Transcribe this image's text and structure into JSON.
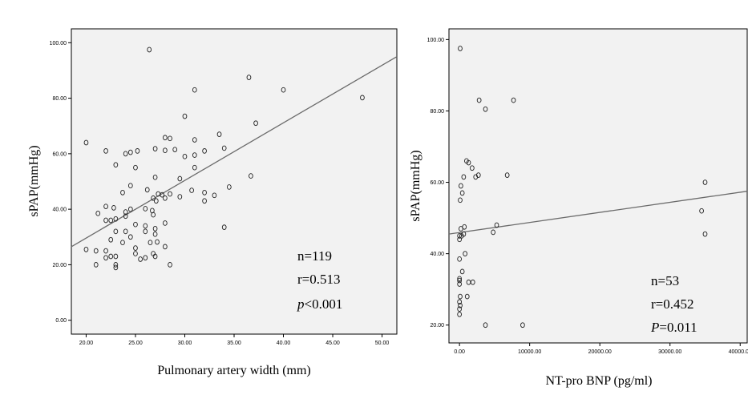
{
  "chart_data": [
    {
      "type": "scatter",
      "title": "",
      "xlabel": "Pulmonary artery width (mm)",
      "ylabel": "sPAP(mmHg)",
      "xlim": [
        18.5,
        51.5
      ],
      "ylim": [
        -5,
        105
      ],
      "xticks": [
        "20.00",
        "25.00",
        "30.00",
        "35.00",
        "40.00",
        "45.00",
        "50.00"
      ],
      "xtick_values": [
        20,
        25,
        30,
        35,
        40,
        45,
        50
      ],
      "yticks": [
        "0.00",
        "20.00",
        "40.00",
        "60.00",
        "80.00",
        "100.00"
      ],
      "ytick_values": [
        0,
        20,
        40,
        60,
        80,
        100
      ],
      "fit_line": {
        "x": [
          18.5,
          51.5
        ],
        "y": [
          26.5,
          95
        ]
      },
      "annotations": {
        "n": "n=119",
        "r": "r=0.513",
        "p_symbol": "p",
        "p_rest": "<0.001"
      },
      "points": [
        [
          26.4,
          97.5
        ],
        [
          36.5,
          87.5
        ],
        [
          40.0,
          83.0
        ],
        [
          31.0,
          83.0
        ],
        [
          48.0,
          80.2
        ],
        [
          30.0,
          73.5
        ],
        [
          37.2,
          71.0
        ],
        [
          33.5,
          67.0
        ],
        [
          28.5,
          65.5
        ],
        [
          28.0,
          65.8
        ],
        [
          31.0,
          65.0
        ],
        [
          20.0,
          64.0
        ],
        [
          27.0,
          61.8
        ],
        [
          28.0,
          61.2
        ],
        [
          29.0,
          61.5
        ],
        [
          22.0,
          61.0
        ],
        [
          24.5,
          60.5
        ],
        [
          24.0,
          60.0
        ],
        [
          25.2,
          61.0
        ],
        [
          32.0,
          61.0
        ],
        [
          34.0,
          62.0
        ],
        [
          30.0,
          59.0
        ],
        [
          31.0,
          59.5
        ],
        [
          23.0,
          56.0
        ],
        [
          25.0,
          55.0
        ],
        [
          31.0,
          55.0
        ],
        [
          36.7,
          52.0
        ],
        [
          27.0,
          51.5
        ],
        [
          29.5,
          51.0
        ],
        [
          24.5,
          48.5
        ],
        [
          34.5,
          48.0
        ],
        [
          23.7,
          46.0
        ],
        [
          26.2,
          47.0
        ],
        [
          30.7,
          46.8
        ],
        [
          33.0,
          45.0
        ],
        [
          27.3,
          45.5
        ],
        [
          28.5,
          45.5
        ],
        [
          32.0,
          46.0
        ],
        [
          26.8,
          44.0
        ],
        [
          29.5,
          44.5
        ],
        [
          28.0,
          44.0
        ],
        [
          32.0,
          43.0
        ],
        [
          27.1,
          43.0
        ],
        [
          27.7,
          45.2
        ],
        [
          22.0,
          41.0
        ],
        [
          22.8,
          40.5
        ],
        [
          24.5,
          40.0
        ],
        [
          26.0,
          40.2
        ],
        [
          26.7,
          39.5
        ],
        [
          24.0,
          39.0
        ],
        [
          26.8,
          38.0
        ],
        [
          21.2,
          38.5
        ],
        [
          24.0,
          37.5
        ],
        [
          22.0,
          36.0
        ],
        [
          22.5,
          36.0
        ],
        [
          23.0,
          36.5
        ],
        [
          25.0,
          34.5
        ],
        [
          28.0,
          35.0
        ],
        [
          26.0,
          34.0
        ],
        [
          34.0,
          33.5
        ],
        [
          23.0,
          32.0
        ],
        [
          24.0,
          32.0
        ],
        [
          26.0,
          32.0
        ],
        [
          27.0,
          33.0
        ],
        [
          24.5,
          30.0
        ],
        [
          27.0,
          31.0
        ],
        [
          22.5,
          29.0
        ],
        [
          23.7,
          28.0
        ],
        [
          26.5,
          28.0
        ],
        [
          27.2,
          28.2
        ],
        [
          25.0,
          26.0
        ],
        [
          20.0,
          25.5
        ],
        [
          21.0,
          25.0
        ],
        [
          22.0,
          25.0
        ],
        [
          25.0,
          24.0
        ],
        [
          26.8,
          24.0
        ],
        [
          28.0,
          26.5
        ],
        [
          22.0,
          22.5
        ],
        [
          22.5,
          23.0
        ],
        [
          23.0,
          23.0
        ],
        [
          25.5,
          22.0
        ],
        [
          26.0,
          22.5
        ],
        [
          27.0,
          23.0
        ],
        [
          21.0,
          20.0
        ],
        [
          23.0,
          20.0
        ],
        [
          23.0,
          19.0
        ],
        [
          28.5,
          20.0
        ]
      ]
    },
    {
      "type": "scatter",
      "title": "",
      "xlabel": "NT-pro BNP (pg/ml)",
      "ylabel": "sPAP(mmHg)",
      "xlim": [
        -1500,
        41000
      ],
      "ylim": [
        15,
        103
      ],
      "xticks": [
        "0.00",
        "10000.00",
        "20000.00",
        "30000.00",
        "40000.00"
      ],
      "xtick_values": [
        0,
        10000,
        20000,
        30000,
        40000
      ],
      "yticks": [
        "20.00",
        "40.00",
        "60.00",
        "80.00",
        "100.00"
      ],
      "ytick_values": [
        20,
        40,
        60,
        80,
        100
      ],
      "fit_line": {
        "x": [
          -1500,
          41000
        ],
        "y": [
          45.5,
          57.5
        ]
      },
      "annotations": {
        "n": "n=53",
        "r": "r=0.452",
        "p_symbol": "P",
        "p_rest": "=0.011"
      },
      "points": [
        [
          100,
          97.5
        ],
        [
          2800,
          83.0
        ],
        [
          7700,
          83.0
        ],
        [
          3700,
          80.5
        ],
        [
          1000,
          66.0
        ],
        [
          1300,
          65.5
        ],
        [
          1800,
          64.0
        ],
        [
          2300,
          61.5
        ],
        [
          2700,
          62.0
        ],
        [
          6800,
          62.0
        ],
        [
          35000,
          60.0
        ],
        [
          600,
          61.5
        ],
        [
          200,
          59.0
        ],
        [
          400,
          57.0
        ],
        [
          100,
          55.0
        ],
        [
          34500,
          52.0
        ],
        [
          5300,
          48.0
        ],
        [
          700,
          47.5
        ],
        [
          200,
          47.0
        ],
        [
          4800,
          46.0
        ],
        [
          35000,
          45.5
        ],
        [
          0,
          45.0
        ],
        [
          300,
          45.0
        ],
        [
          600,
          45.5
        ],
        [
          0,
          44.0
        ],
        [
          800,
          40.0
        ],
        [
          0,
          38.5
        ],
        [
          400,
          35.0
        ],
        [
          0,
          33.0
        ],
        [
          0,
          32.5
        ],
        [
          1300,
          32.0
        ],
        [
          1900,
          32.0
        ],
        [
          0,
          31.5
        ],
        [
          100,
          28.0
        ],
        [
          1100,
          28.0
        ],
        [
          0,
          26.5
        ],
        [
          100,
          25.5
        ],
        [
          0,
          24.5
        ],
        [
          0,
          23.0
        ],
        [
          3700,
          20.0
        ],
        [
          9000,
          20.0
        ]
      ]
    }
  ]
}
